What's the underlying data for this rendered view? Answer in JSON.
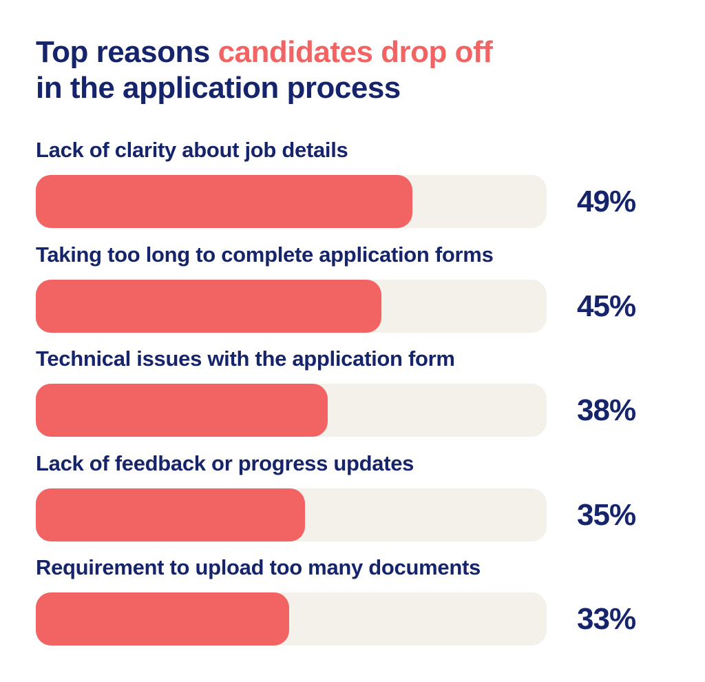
{
  "title": {
    "part1": "Top reasons ",
    "part2_highlight": "candidates drop off",
    "line2": "in the application process"
  },
  "colors": {
    "dark": "#15246b",
    "accent": "#f26363",
    "track": "#f3f1ea"
  },
  "chart_data": {
    "type": "bar",
    "orientation": "horizontal",
    "title": "Top reasons candidates drop off in the application process",
    "categories": [
      "Lack of clarity about job details",
      "Taking too long to complete application forms",
      "Technical issues with the application form",
      "Lack of feedback or progress updates",
      "Requirement to upload too many documents"
    ],
    "values": [
      49,
      45,
      38,
      35,
      33
    ],
    "value_labels": [
      "49%",
      "45%",
      "38%",
      "35%",
      "33%"
    ],
    "unit": "%",
    "xlim": [
      0,
      100
    ],
    "grid": false
  }
}
